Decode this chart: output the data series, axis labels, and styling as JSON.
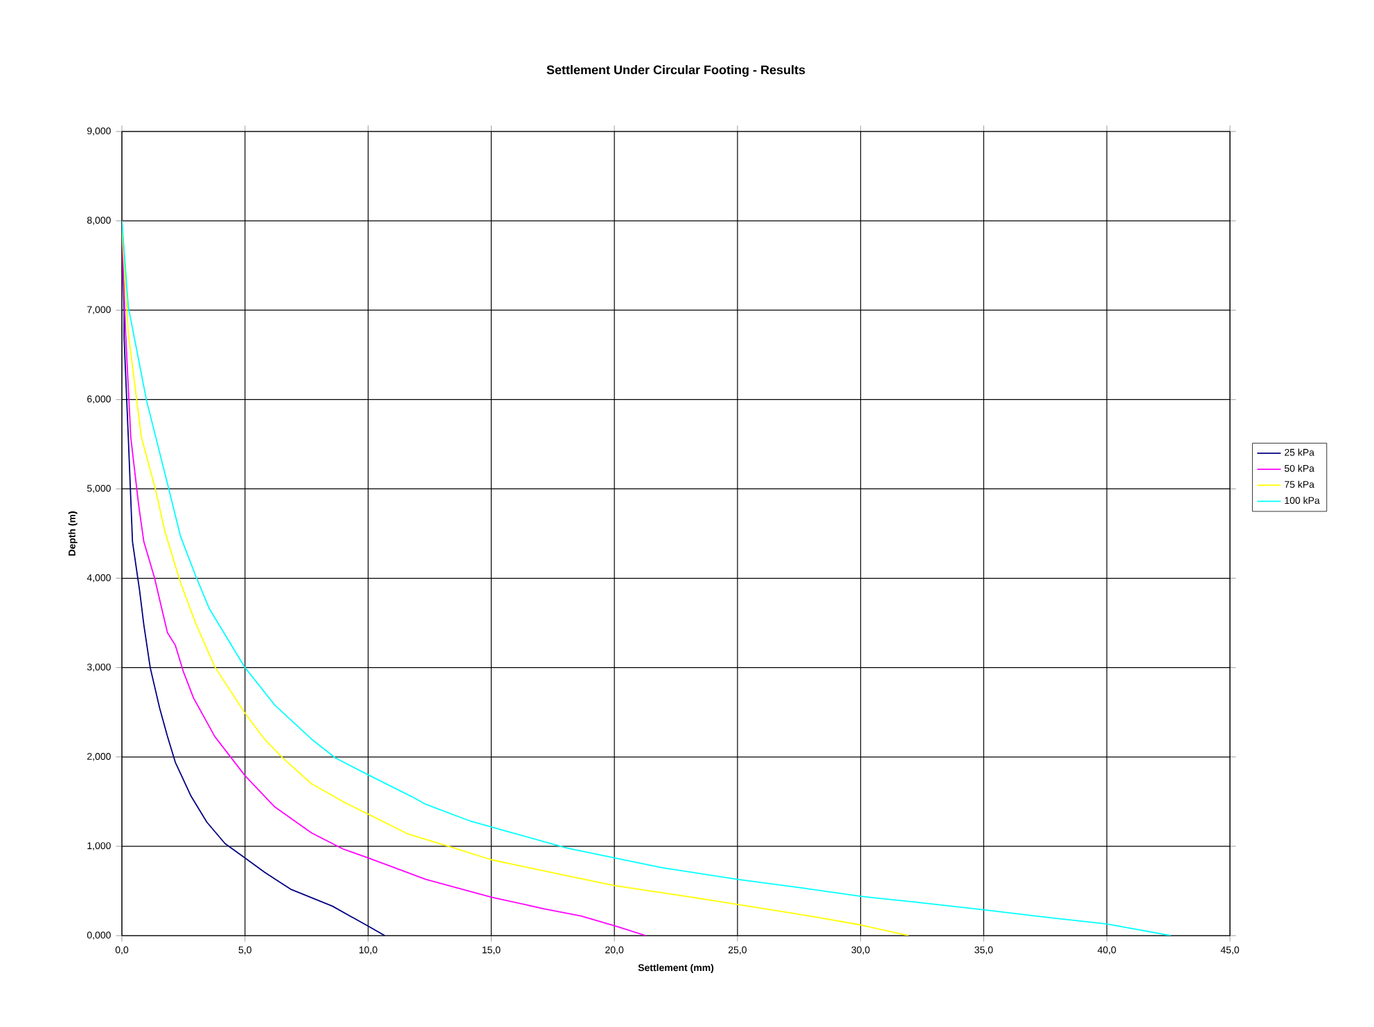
{
  "chart_data": {
    "type": "line",
    "title": "Settlement Under Circular Footing - Results",
    "xlabel": "Settlement (mm)",
    "ylabel": "Depth (m)",
    "xlim": [
      0,
      45
    ],
    "ylim": [
      0,
      9
    ],
    "xticks": [
      {
        "value": 0,
        "label": "0,0"
      },
      {
        "value": 5,
        "label": "5,0"
      },
      {
        "value": 10,
        "label": "10,0"
      },
      {
        "value": 15,
        "label": "15,0"
      },
      {
        "value": 20,
        "label": "20,0"
      },
      {
        "value": 25,
        "label": "25,0"
      },
      {
        "value": 30,
        "label": "30,0"
      },
      {
        "value": 35,
        "label": "35,0"
      },
      {
        "value": 40,
        "label": "40,0"
      },
      {
        "value": 45,
        "label": "45,0"
      }
    ],
    "yticks": [
      {
        "value": 0,
        "label": "0,000"
      },
      {
        "value": 1,
        "label": "1,000"
      },
      {
        "value": 2,
        "label": "2,000"
      },
      {
        "value": 3,
        "label": "3,000"
      },
      {
        "value": 4,
        "label": "4,000"
      },
      {
        "value": 5,
        "label": "5,000"
      },
      {
        "value": 6,
        "label": "6,000"
      },
      {
        "value": 7,
        "label": "7,000"
      },
      {
        "value": 8,
        "label": "8,000"
      },
      {
        "value": 9,
        "label": "9,000"
      }
    ],
    "grid": true,
    "legend": "right",
    "marker": "none",
    "line_style": "solid",
    "series": [
      {
        "name": "25 kPa",
        "color": "#000080",
        "x": [
          0,
          0.09,
          0.09,
          0.26,
          0.43,
          0.72,
          0.89,
          1.15,
          1.53,
          1.85,
          2.17,
          2.81,
          3.45,
          4.19,
          5.0,
          5.79,
          6.85,
          8.55,
          10.04,
          10.68
        ],
        "values": [
          8.0,
          6.98,
          6.69,
          5.58,
          4.41,
          3.86,
          3.48,
          3.0,
          2.55,
          2.23,
          1.94,
          1.56,
          1.27,
          1.03,
          0.87,
          0.71,
          0.52,
          0.33,
          0.1,
          0
        ]
      },
      {
        "name": "50 kPa",
        "color": "#ff00ff",
        "x": [
          0,
          0.04,
          0.15,
          0.36,
          0.68,
          0.89,
          1.32,
          1.85,
          2.17,
          2.49,
          2.91,
          3.77,
          5.0,
          6.21,
          7.7,
          8.98,
          10.0,
          12.34,
          15.0,
          17.16,
          18.65,
          20.14,
          21.28
        ],
        "values": [
          8.0,
          7.56,
          6.75,
          5.58,
          4.82,
          4.41,
          4.01,
          3.39,
          3.25,
          2.96,
          2.66,
          2.23,
          1.79,
          1.44,
          1.15,
          0.97,
          0.87,
          0.63,
          0.43,
          0.3,
          0.22,
          0.1,
          0
        ]
      },
      {
        "name": "75 kPa",
        "color": "#ffff00",
        "x": [
          0,
          0.04,
          0.26,
          0.79,
          1.36,
          1.74,
          2.38,
          3.02,
          3.77,
          5.0,
          5.79,
          6.53,
          7.7,
          8.98,
          10.0,
          11.6,
          13.49,
          15.0,
          16.7,
          20.0,
          22.9,
          25.0,
          27.94,
          30.0,
          31.95
        ],
        "values": [
          8.0,
          7.74,
          6.75,
          5.58,
          5.0,
          4.53,
          3.95,
          3.48,
          3.01,
          2.49,
          2.2,
          1.99,
          1.7,
          1.5,
          1.36,
          1.14,
          0.98,
          0.85,
          0.75,
          0.56,
          0.44,
          0.35,
          0.22,
          0.12,
          0
        ]
      },
      {
        "name": "100 kPa",
        "color": "#00ffff",
        "x": [
          0,
          0.26,
          1.0,
          1.85,
          2.38,
          3.02,
          3.55,
          5.0,
          6.21,
          7.7,
          8.66,
          10.0,
          11.74,
          12.34,
          14.17,
          16.0,
          18.07,
          20.0,
          21.95,
          25.0,
          27.48,
          30.0,
          32.06,
          35.0,
          37.11,
          40.0,
          42.6
        ],
        "values": [
          8.0,
          7.04,
          5.99,
          5.06,
          4.47,
          4.01,
          3.66,
          3.0,
          2.58,
          2.2,
          1.99,
          1.8,
          1.56,
          1.47,
          1.28,
          1.14,
          0.98,
          0.87,
          0.76,
          0.63,
          0.54,
          0.44,
          0.38,
          0.29,
          0.22,
          0.13,
          0
        ]
      }
    ]
  }
}
